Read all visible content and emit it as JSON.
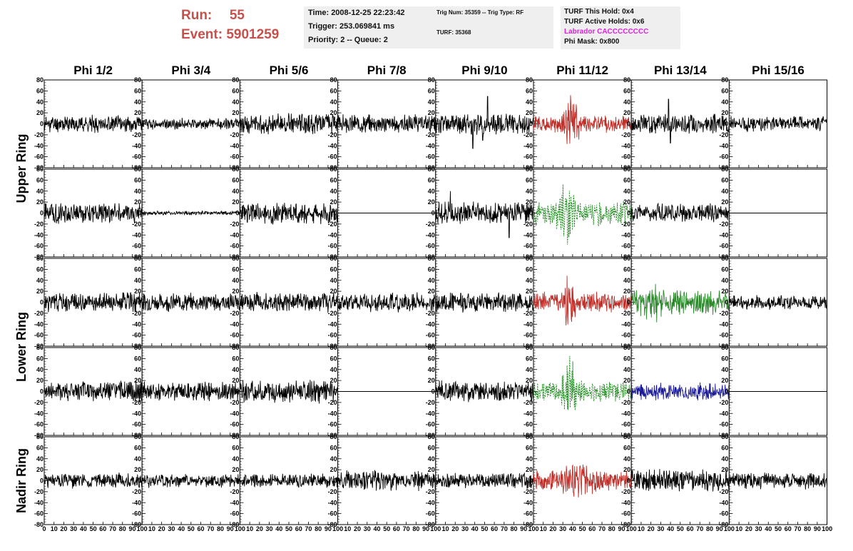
{
  "header": {
    "run_label": "Run:",
    "run_value": "55",
    "event_label": "Event:",
    "event_value": "5901259",
    "time": "Time: 2008-12-25 22:23:42",
    "trigger": "Trigger: 253.069841 ms",
    "priority": "Priority: 2 -- Queue: 2",
    "trig_info": "Trig Num: 35359 -- Trig Type: RF",
    "turf": "TURF: 35368",
    "turf_this_hold": "TURF This Hold: 0x4",
    "turf_active_holds": "TURF Active Holds: 0x6",
    "labrador": "Labrador CACCCCCCCC",
    "phi_mask": "Phi Mask: 0x800"
  },
  "colors": {
    "header_red": "#c8504b",
    "labrador_magenta": "#e020e0",
    "trace_black": "#000000",
    "trace_red": "#c0302a",
    "trace_green": "#2a8a2a",
    "trace_green_dashed": "#1a8a1a",
    "trace_blue": "#1a1a9a",
    "header_box_bg": "#efefef"
  },
  "chart_data": {
    "type": "line",
    "columns": [
      "Phi 1/2",
      "Phi 3/4",
      "Phi 5/6",
      "Phi 7/8",
      "Phi 9/10",
      "Phi 11/12",
      "Phi 13/14",
      "Phi 15/16"
    ],
    "ring_labels": [
      "Upper Ring",
      "Lower Ring",
      "Nadir Ring"
    ],
    "ylim": [
      -80,
      80
    ],
    "xlim": [
      0,
      100
    ],
    "yticks": [
      "80",
      "60",
      "40",
      "20",
      "0",
      "-20",
      "-40",
      "-60",
      "-80"
    ],
    "xticks": [
      "0",
      "10",
      "20",
      "30",
      "40",
      "50",
      "60",
      "70",
      "80",
      "90",
      "100"
    ],
    "grid": false,
    "panels": [
      {
        "row": 0,
        "col": 0,
        "color": "black",
        "style": "solid",
        "amp": 12,
        "seed": 11
      },
      {
        "row": 0,
        "col": 1,
        "color": "black",
        "style": "solid",
        "amp": 8,
        "seed": 12
      },
      {
        "row": 0,
        "col": 2,
        "color": "black",
        "style": "solid",
        "amp": 15,
        "seed": 13
      },
      {
        "row": 0,
        "col": 3,
        "color": "black",
        "style": "solid",
        "amp": 13,
        "seed": 14
      },
      {
        "row": 0,
        "col": 4,
        "color": "black",
        "style": "solid",
        "amp": 15,
        "spike": [
          [
            38,
            -45
          ],
          [
            48,
            -30
          ],
          [
            53,
            50
          ]
        ],
        "seed": 15
      },
      {
        "row": 0,
        "col": 5,
        "color": "red",
        "style": "solid",
        "amp": 12,
        "burst": [
          25,
          50,
          45
        ],
        "seed": 16
      },
      {
        "row": 0,
        "col": 6,
        "color": "black",
        "style": "solid",
        "amp": 14,
        "spike": [
          [
            38,
            45
          ],
          [
            40,
            -35
          ]
        ],
        "seed": 17
      },
      {
        "row": 0,
        "col": 7,
        "color": "black",
        "style": "solid",
        "amp": 11,
        "seed": 18
      },
      {
        "row": 1,
        "col": 0,
        "color": "black",
        "style": "solid",
        "amp": 15,
        "seed": 21
      },
      {
        "row": 1,
        "col": 1,
        "color": "black",
        "style": "solid",
        "amp": 3,
        "seed": 22
      },
      {
        "row": 1,
        "col": 2,
        "color": "black",
        "style": "solid",
        "amp": 16,
        "seed": 23
      },
      {
        "row": 1,
        "col": 3,
        "color": "black",
        "style": "flat",
        "amp": 0,
        "seed": 24
      },
      {
        "row": 1,
        "col": 4,
        "color": "black",
        "style": "solid",
        "amp": 16,
        "spike": [
          [
            15,
            40
          ],
          [
            75,
            -45
          ]
        ],
        "seed": 25
      },
      {
        "row": 1,
        "col": 5,
        "color": "green",
        "style": "dashed",
        "amp": 18,
        "burst": [
          20,
          45,
          65
        ],
        "seed": 26
      },
      {
        "row": 1,
        "col": 6,
        "color": "black",
        "style": "solid",
        "amp": 13,
        "seed": 27
      },
      {
        "row": 1,
        "col": 7,
        "color": "black",
        "style": "flat",
        "amp": 0,
        "seed": 28
      },
      {
        "row": 2,
        "col": 0,
        "color": "black",
        "style": "solid",
        "amp": 14,
        "seed": 31
      },
      {
        "row": 2,
        "col": 1,
        "color": "black",
        "style": "solid",
        "amp": 13,
        "seed": 32
      },
      {
        "row": 2,
        "col": 2,
        "color": "black",
        "style": "solid",
        "amp": 14,
        "seed": 33
      },
      {
        "row": 2,
        "col": 3,
        "color": "black",
        "style": "solid",
        "amp": 14,
        "seed": 34
      },
      {
        "row": 2,
        "col": 4,
        "color": "black",
        "style": "solid",
        "amp": 14,
        "seed": 35
      },
      {
        "row": 2,
        "col": 5,
        "color": "red",
        "style": "solid",
        "amp": 14,
        "burst": [
          25,
          45,
          45
        ],
        "seed": 36
      },
      {
        "row": 2,
        "col": 6,
        "color": "green",
        "style": "solid",
        "amp": 18,
        "burst": [
          5,
          40,
          30
        ],
        "seed": 37
      },
      {
        "row": 2,
        "col": 7,
        "color": "black",
        "style": "solid",
        "amp": 10,
        "seed": 38
      },
      {
        "row": 3,
        "col": 0,
        "color": "black",
        "style": "solid",
        "amp": 15,
        "seed": 41
      },
      {
        "row": 3,
        "col": 1,
        "color": "black",
        "style": "solid",
        "amp": 14,
        "seed": 42
      },
      {
        "row": 3,
        "col": 2,
        "color": "black",
        "style": "solid",
        "amp": 16,
        "seed": 43
      },
      {
        "row": 3,
        "col": 3,
        "color": "black",
        "style": "flat",
        "amp": 0,
        "seed": 44
      },
      {
        "row": 3,
        "col": 4,
        "color": "black",
        "style": "solid",
        "amp": 15,
        "seed": 45
      },
      {
        "row": 3,
        "col": 5,
        "color": "green",
        "style": "dashed",
        "amp": 14,
        "burst": [
          25,
          50,
          65
        ],
        "seed": 46
      },
      {
        "row": 3,
        "col": 6,
        "color": "blue",
        "style": "solid",
        "amp": 12,
        "seed": 47
      },
      {
        "row": 3,
        "col": 7,
        "color": "black",
        "style": "flat",
        "amp": 0,
        "seed": 48
      },
      {
        "row": 4,
        "col": 0,
        "color": "black",
        "style": "solid",
        "amp": 11,
        "seed": 51
      },
      {
        "row": 4,
        "col": 1,
        "color": "black",
        "style": "solid",
        "amp": 10,
        "seed": 52
      },
      {
        "row": 4,
        "col": 2,
        "color": "black",
        "style": "solid",
        "amp": 10,
        "seed": 53
      },
      {
        "row": 4,
        "col": 3,
        "color": "black",
        "style": "solid",
        "amp": 15,
        "seed": 54
      },
      {
        "row": 4,
        "col": 4,
        "color": "black",
        "style": "solid",
        "amp": 11,
        "seed": 55
      },
      {
        "row": 4,
        "col": 5,
        "color": "red",
        "style": "solid",
        "amp": 14,
        "burst": [
          25,
          65,
          40
        ],
        "seed": 56
      },
      {
        "row": 4,
        "col": 6,
        "color": "black",
        "style": "solid",
        "amp": 16,
        "seed": 57
      },
      {
        "row": 4,
        "col": 7,
        "color": "black",
        "style": "solid",
        "amp": 12,
        "seed": 58
      }
    ]
  }
}
